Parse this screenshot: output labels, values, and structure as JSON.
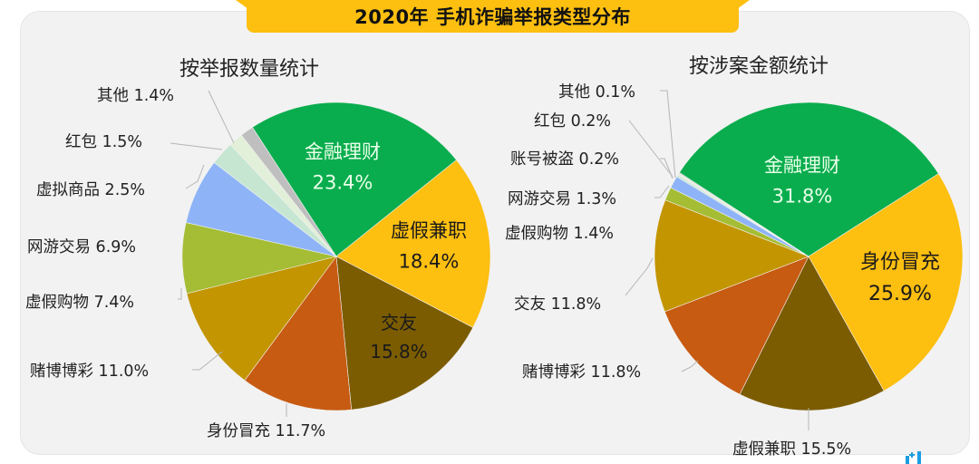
{
  "title": "2020年 手机诈骗举报类型分布",
  "colors": {
    "banner": "#fdbf10",
    "panel": "#f2f2f2",
    "finance": "#0aad4e",
    "parttime_yellow": "#fdbf10",
    "dark_olive": "#7b5c00",
    "orange": "#c75b12",
    "mustard": "#c39500",
    "lime": "#a5bd34",
    "blue": "#8eb4f7",
    "mint": "#c6e6d2",
    "pale": "#e2efd9",
    "gray": "#bfbfbf"
  },
  "chart_data": [
    {
      "type": "pie",
      "title": "按举报数量统计",
      "unit": "%",
      "categories": [
        "金融理财",
        "虚假兼职",
        "交友",
        "身份冒充",
        "赌博博彩",
        "虚假购物",
        "网游交易",
        "虚拟商品",
        "红包",
        "其他"
      ],
      "values": [
        23.4,
        18.4,
        15.8,
        11.7,
        11.0,
        7.4,
        6.9,
        2.5,
        1.5,
        1.4
      ],
      "colors": [
        "#0aad4e",
        "#fdbf10",
        "#7b5c00",
        "#c75b12",
        "#c39500",
        "#a5bd34",
        "#8eb4f7",
        "#c6e6d2",
        "#e2efd9",
        "#bfbfbf"
      ],
      "start_angle_deg": -33,
      "direction": "clockwise"
    },
    {
      "type": "pie",
      "title": "按涉案金额统计",
      "unit": "%",
      "categories": [
        "金融理财",
        "身份冒充",
        "虚假兼职",
        "赌博博彩",
        "交友",
        "虚假购物",
        "网游交易",
        "账号被盗",
        "红包",
        "其他"
      ],
      "values": [
        31.8,
        25.9,
        15.5,
        11.8,
        11.8,
        1.4,
        1.3,
        0.2,
        0.2,
        0.1
      ],
      "colors": [
        "#0aad4e",
        "#fdbf10",
        "#7b5c00",
        "#c75b12",
        "#c39500",
        "#a5bd34",
        "#8eb4f7",
        "#c6e6d2",
        "#e2efd9",
        "#bfbfbf"
      ],
      "start_angle_deg": -57,
      "direction": "clockwise"
    }
  ],
  "left": {
    "title": "按举报数量统计",
    "inside": [
      {
        "name": "金融理财",
        "value": "23.4%",
        "color": "#eaffea"
      },
      {
        "name": "虚假兼职",
        "value": "18.4%",
        "color": "#1a1a1a"
      },
      {
        "name": "交友",
        "value": "15.8%",
        "color": "#1a1a1a"
      }
    ],
    "outside": [
      {
        "text": "其他 1.4%"
      },
      {
        "text": "红包 1.5%"
      },
      {
        "text": "虚拟商品 2.5%"
      },
      {
        "text": "网游交易 6.9%"
      },
      {
        "text": "虚假购物 7.4%"
      },
      {
        "text": "赌博博彩 11.0%"
      },
      {
        "text": "身份冒充 11.7%"
      }
    ]
  },
  "right": {
    "title": "按涉案金额统计",
    "inside": [
      {
        "name": "金融理财",
        "value": "31.8%",
        "color": "#eaffea"
      },
      {
        "name": "身份冒充",
        "value": "25.9%",
        "color": "#1a1a1a"
      }
    ],
    "outside": [
      {
        "text": "其他 0.1%"
      },
      {
        "text": "红包 0.2%"
      },
      {
        "text": "账号被盗 0.2%"
      },
      {
        "text": "网游交易 1.3%"
      },
      {
        "text": "虚假购物 1.4%"
      },
      {
        "text": "交友 11.8%"
      },
      {
        "text": "赌博博彩 11.8%"
      },
      {
        "text": "虚假兼职 15.5%"
      }
    ]
  }
}
